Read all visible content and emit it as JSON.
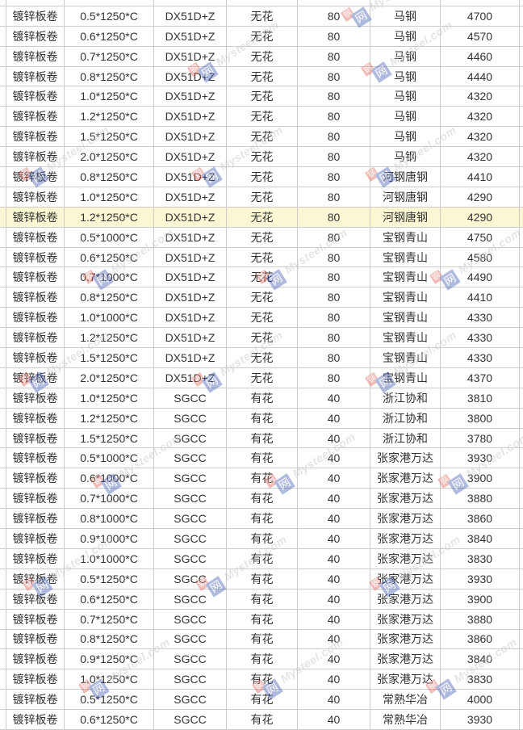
{
  "watermark": {
    "text": "Mysteel.com",
    "logo_red_char": "钢",
    "logo_blue_char": "网"
  },
  "colors": {
    "highlight_row_bg": "#fbf7d3",
    "grid_border": "#cccccc",
    "cell_text": "#333333",
    "watermark_text": "#bfbfbf",
    "watermark_logo_red": "#e0564b",
    "watermark_logo_blue": "#3a55b0"
  },
  "table": {
    "column_keys": [
      "product",
      "spec",
      "material",
      "surface",
      "zinc_layer",
      "mill",
      "price"
    ],
    "rows": [
      {
        "highlighted": false,
        "cells": [
          "镀锌板卷",
          "0.5*1250*C",
          "DX51D+Z",
          "无花",
          "80",
          "马钢",
          "4700"
        ]
      },
      {
        "highlighted": false,
        "cells": [
          "镀锌板卷",
          "0.6*1250*C",
          "DX51D+Z",
          "无花",
          "80",
          "马钢",
          "4570"
        ]
      },
      {
        "highlighted": false,
        "cells": [
          "镀锌板卷",
          "0.7*1250*C",
          "DX51D+Z",
          "无花",
          "80",
          "马钢",
          "4460"
        ]
      },
      {
        "highlighted": false,
        "cells": [
          "镀锌板卷",
          "0.8*1250*C",
          "DX51D+Z",
          "无花",
          "80",
          "马钢",
          "4440"
        ]
      },
      {
        "highlighted": false,
        "cells": [
          "镀锌板卷",
          "1.0*1250*C",
          "DX51D+Z",
          "无花",
          "80",
          "马钢",
          "4320"
        ]
      },
      {
        "highlighted": false,
        "cells": [
          "镀锌板卷",
          "1.2*1250*C",
          "DX51D+Z",
          "无花",
          "80",
          "马钢",
          "4320"
        ]
      },
      {
        "highlighted": false,
        "cells": [
          "镀锌板卷",
          "1.5*1250*C",
          "DX51D+Z",
          "无花",
          "80",
          "马钢",
          "4320"
        ]
      },
      {
        "highlighted": false,
        "cells": [
          "镀锌板卷",
          "2.0*1250*C",
          "DX51D+Z",
          "无花",
          "80",
          "马钢",
          "4320"
        ]
      },
      {
        "highlighted": false,
        "cells": [
          "镀锌板卷",
          "0.8*1250*C",
          "DX51D+Z",
          "无花",
          "80",
          "河钢唐钢",
          "4410"
        ]
      },
      {
        "highlighted": false,
        "cells": [
          "镀锌板卷",
          "1.0*1250*C",
          "DX51D+Z",
          "无花",
          "80",
          "河钢唐钢",
          "4290"
        ]
      },
      {
        "highlighted": true,
        "cells": [
          "镀锌板卷",
          "1.2*1250*C",
          "DX51D+Z",
          "无花",
          "80",
          "河钢唐钢",
          "4290"
        ]
      },
      {
        "highlighted": false,
        "cells": [
          "镀锌板卷",
          "0.5*1000*C",
          "DX51D+Z",
          "无花",
          "80",
          "宝钢青山",
          "4750"
        ]
      },
      {
        "highlighted": false,
        "cells": [
          "镀锌板卷",
          "0.6*1250*C",
          "DX51D+Z",
          "无花",
          "80",
          "宝钢青山",
          "4580"
        ]
      },
      {
        "highlighted": false,
        "cells": [
          "镀锌板卷",
          "0.7*1000*C",
          "DX51D+Z",
          "无花",
          "80",
          "宝钢青山",
          "4490"
        ]
      },
      {
        "highlighted": false,
        "cells": [
          "镀锌板卷",
          "0.8*1250*C",
          "DX51D+Z",
          "无花",
          "80",
          "宝钢青山",
          "4410"
        ]
      },
      {
        "highlighted": false,
        "cells": [
          "镀锌板卷",
          "1.0*1000*C",
          "DX51D+Z",
          "无花",
          "80",
          "宝钢青山",
          "4330"
        ]
      },
      {
        "highlighted": false,
        "cells": [
          "镀锌板卷",
          "1.2*1250*C",
          "DX51D+Z",
          "无花",
          "80",
          "宝钢青山",
          "4330"
        ]
      },
      {
        "highlighted": false,
        "cells": [
          "镀锌板卷",
          "1.5*1250*C",
          "DX51D+Z",
          "无花",
          "80",
          "宝钢青山",
          "4330"
        ]
      },
      {
        "highlighted": false,
        "cells": [
          "镀锌板卷",
          "2.0*1250*C",
          "DX51D+Z",
          "无花",
          "80",
          "宝钢青山",
          "4370"
        ]
      },
      {
        "highlighted": false,
        "cells": [
          "镀锌板卷",
          "1.0*1250*C",
          "SGCC",
          "有花",
          "40",
          "浙江协和",
          "3810"
        ]
      },
      {
        "highlighted": false,
        "cells": [
          "镀锌板卷",
          "1.2*1250*C",
          "SGCC",
          "有花",
          "40",
          "浙江协和",
          "3800"
        ]
      },
      {
        "highlighted": false,
        "cells": [
          "镀锌板卷",
          "1.5*1250*C",
          "SGCC",
          "有花",
          "40",
          "浙江协和",
          "3780"
        ]
      },
      {
        "highlighted": false,
        "cells": [
          "镀锌板卷",
          "0.5*1000*C",
          "SGCC",
          "有花",
          "40",
          "张家港万达",
          "3930"
        ]
      },
      {
        "highlighted": false,
        "cells": [
          "镀锌板卷",
          "0.6*1000*C",
          "SGCC",
          "有花",
          "40",
          "张家港万达",
          "3900"
        ]
      },
      {
        "highlighted": false,
        "cells": [
          "镀锌板卷",
          "0.7*1000*C",
          "SGCC",
          "有花",
          "40",
          "张家港万达",
          "3880"
        ]
      },
      {
        "highlighted": false,
        "cells": [
          "镀锌板卷",
          "0.8*1000*C",
          "SGCC",
          "有花",
          "40",
          "张家港万达",
          "3860"
        ]
      },
      {
        "highlighted": false,
        "cells": [
          "镀锌板卷",
          "0.9*1000*C",
          "SGCC",
          "有花",
          "40",
          "张家港万达",
          "3840"
        ]
      },
      {
        "highlighted": false,
        "cells": [
          "镀锌板卷",
          "1.0*1000*C",
          "SGCC",
          "有花",
          "40",
          "张家港万达",
          "3830"
        ]
      },
      {
        "highlighted": false,
        "cells": [
          "镀锌板卷",
          "0.5*1250*C",
          "SGCC",
          "有花",
          "40",
          "张家港万达",
          "3930"
        ]
      },
      {
        "highlighted": false,
        "cells": [
          "镀锌板卷",
          "0.6*1250*C",
          "SGCC",
          "有花",
          "40",
          "张家港万达",
          "3900"
        ]
      },
      {
        "highlighted": false,
        "cells": [
          "镀锌板卷",
          "0.7*1250*C",
          "SGCC",
          "有花",
          "40",
          "张家港万达",
          "3880"
        ]
      },
      {
        "highlighted": false,
        "cells": [
          "镀锌板卷",
          "0.8*1250*C",
          "SGCC",
          "有花",
          "40",
          "张家港万达",
          "3860"
        ]
      },
      {
        "highlighted": false,
        "cells": [
          "镀锌板卷",
          "0.9*1250*C",
          "SGCC",
          "有花",
          "40",
          "张家港万达",
          "3840"
        ]
      },
      {
        "highlighted": false,
        "cells": [
          "镀锌板卷",
          "1.0*1250*C",
          "SGCC",
          "有花",
          "40",
          "张家港万达",
          "3830"
        ]
      },
      {
        "highlighted": false,
        "cells": [
          "镀锌板卷",
          "0.5*1250*C",
          "SGCC",
          "有花",
          "40",
          "常熟华冶",
          "4000"
        ]
      },
      {
        "highlighted": false,
        "cells": [
          "镀锌板卷",
          "0.6*1250*C",
          "SGCC",
          "有花",
          "40",
          "常熟华冶",
          "3930"
        ]
      }
    ]
  }
}
